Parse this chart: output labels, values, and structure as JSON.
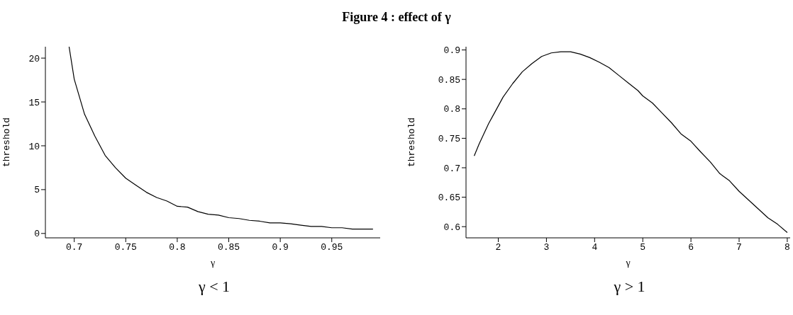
{
  "chart_data": [
    {
      "type": "line",
      "title": "Figure 4 : effect of γ",
      "xlabel": "γ",
      "ylabel": "threshold",
      "annotations": [
        "γ < 1"
      ],
      "x": [
        0.695,
        0.7,
        0.71,
        0.72,
        0.73,
        0.74,
        0.75,
        0.76,
        0.77,
        0.78,
        0.79,
        0.8,
        0.81,
        0.82,
        0.83,
        0.84,
        0.85,
        0.86,
        0.87,
        0.88,
        0.89,
        0.9,
        0.91,
        0.92,
        0.93,
        0.94,
        0.95,
        0.96,
        0.97,
        0.98,
        0.99
      ],
      "series": [
        {
          "color": "#000000",
          "values": [
            21.3,
            17.6,
            13.6,
            11.1,
            8.9,
            7.5,
            6.3,
            5.5,
            4.7,
            4.1,
            3.7,
            3.1,
            3.0,
            2.5,
            2.2,
            2.1,
            1.8,
            1.7,
            1.5,
            1.4,
            1.2,
            1.2,
            1.1,
            0.95,
            0.8,
            0.8,
            0.65,
            0.65,
            0.5,
            0.5,
            0.5
          ]
        }
      ],
      "xlim": [
        0.672,
        0.997
      ],
      "xticks": [
        0.7,
        0.75,
        0.8,
        0.85,
        0.9,
        0.95
      ],
      "ylim": [
        -0.5,
        21.3
      ],
      "yticks": [
        0,
        5,
        10,
        15,
        20
      ],
      "grid": false,
      "legend": false,
      "marker": "none",
      "line_style": "solid"
    },
    {
      "type": "line",
      "xlabel": "γ",
      "ylabel": "threshold",
      "annotations": [
        "γ > 1"
      ],
      "x": [
        1.5,
        1.6,
        1.8,
        1.9,
        2.0,
        2.1,
        2.3,
        2.5,
        2.7,
        2.9,
        3.1,
        3.3,
        3.5,
        3.7,
        3.9,
        4.1,
        4.3,
        4.5,
        4.7,
        4.9,
        5.0,
        5.2,
        5.4,
        5.6,
        5.8,
        6.0,
        6.2,
        6.4,
        6.6,
        6.8,
        7.0,
        7.2,
        7.4,
        7.6,
        7.8,
        8.0
      ],
      "series": [
        {
          "color": "#000000",
          "values": [
            0.72,
            0.74,
            0.775,
            0.79,
            0.805,
            0.82,
            0.843,
            0.863,
            0.877,
            0.889,
            0.895,
            0.897,
            0.897,
            0.893,
            0.887,
            0.879,
            0.87,
            0.857,
            0.844,
            0.831,
            0.822,
            0.81,
            0.793,
            0.776,
            0.757,
            0.745,
            0.727,
            0.71,
            0.69,
            0.678,
            0.66,
            0.645,
            0.63,
            0.615,
            0.604,
            0.59
          ]
        }
      ],
      "xlim": [
        1.33,
        8.06
      ],
      "xticks": [
        2,
        3,
        4,
        5,
        6,
        7,
        8
      ],
      "ylim": [
        0.581,
        0.9055
      ],
      "yticks": [
        0.6,
        0.65,
        0.7,
        0.75,
        0.8,
        0.85,
        0.9
      ],
      "grid": false,
      "legend": false,
      "marker": "none",
      "line_style": "solid"
    }
  ]
}
